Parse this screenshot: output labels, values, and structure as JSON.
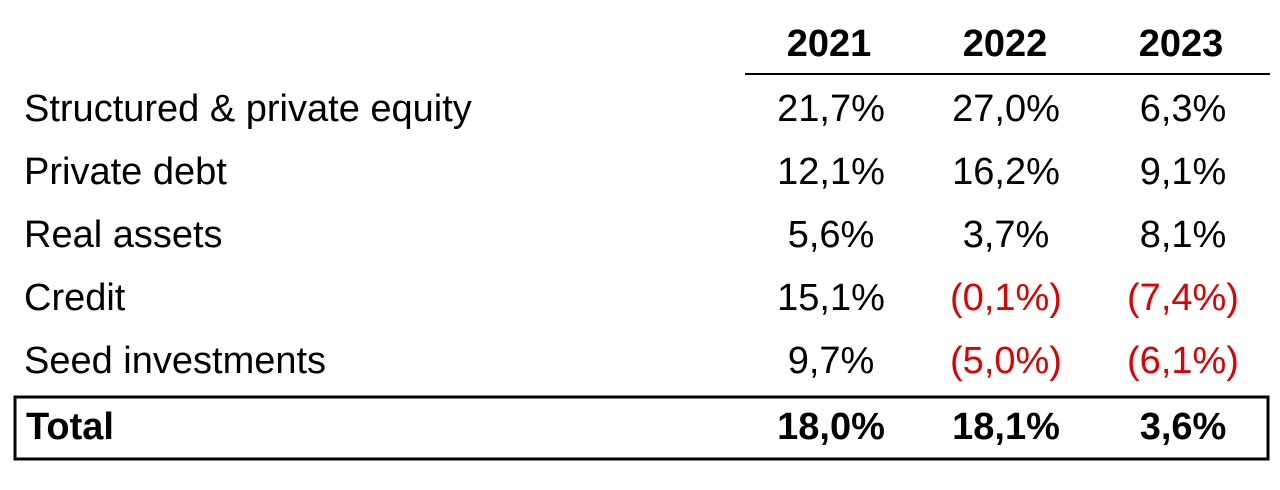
{
  "table": {
    "columns": [
      "2021",
      "2022",
      "2023"
    ],
    "rows": [
      [
        "Structured & private equity",
        "21,7%",
        "27,0%",
        "6,3%"
      ],
      [
        "Private debt",
        "12,1%",
        "16,2%",
        "9,1%"
      ],
      [
        "Real assets",
        "5,6%",
        "3,7%",
        "8,1%"
      ],
      [
        "Credit",
        "15,1%",
        "(0,1%)",
        "(7,4%)"
      ],
      [
        "Seed investments",
        "9,7%",
        "(5,0%)",
        "(6,1%)"
      ]
    ],
    "total": [
      "Total",
      "18,0%",
      "18,1%",
      "3,6%"
    ]
  }
}
